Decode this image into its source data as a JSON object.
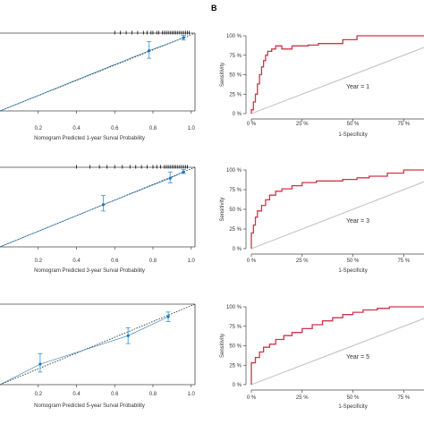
{
  "figure": {
    "panel_label_right": "B",
    "colors": {
      "calibration_points": "#1f78b4",
      "error_bars": "#4a9be0",
      "ideal_line": "#333333",
      "roc_curve": "#d0344a",
      "reference_line": "#c8c8c8",
      "axis": "#444444"
    }
  },
  "chart_data": [
    {
      "type": "scatter",
      "subtype": "calibration",
      "xlabel": "Nomogram Predicted 1-year Surval Probability",
      "xticks": [
        "0.2",
        "0.4",
        "0.6",
        "0.8",
        "1.0"
      ],
      "xlim": [
        0.0,
        1.02
      ],
      "ylim": [
        0.0,
        1.02
      ],
      "points": [
        {
          "x": 0.78,
          "y": 0.79,
          "lo": 0.69,
          "hi": 0.91
        },
        {
          "x": 0.96,
          "y": 0.96,
          "lo": 0.93,
          "hi": 0.99
        }
      ],
      "rug": [
        0.6,
        0.63,
        0.66,
        0.69,
        0.72,
        0.75,
        0.77,
        0.79,
        0.8,
        0.82,
        0.83,
        0.85,
        0.86,
        0.87,
        0.88,
        0.89,
        0.9,
        0.91,
        0.92,
        0.93,
        0.94,
        0.95,
        0.96,
        0.97,
        0.98,
        0.99
      ]
    },
    {
      "type": "scatter",
      "subtype": "calibration",
      "xlabel": "Nomogram Predicted 3-year Surval Probability",
      "xticks": [
        "0.2",
        "0.4",
        "0.6",
        "0.8",
        "1.0"
      ],
      "xlim": [
        0.0,
        1.02
      ],
      "ylim": [
        0.0,
        1.02
      ],
      "points": [
        {
          "x": 0.54,
          "y": 0.54,
          "lo": 0.46,
          "hi": 0.66
        },
        {
          "x": 0.89,
          "y": 0.88,
          "lo": 0.82,
          "hi": 0.96
        },
        {
          "x": 0.96,
          "y": 0.96,
          "lo": 0.94,
          "hi": 0.99
        }
      ],
      "rug": [
        0.4,
        0.47,
        0.52,
        0.56,
        0.6,
        0.64,
        0.68,
        0.71,
        0.74,
        0.77,
        0.8,
        0.82,
        0.84,
        0.86,
        0.87,
        0.88,
        0.89,
        0.9,
        0.91,
        0.92,
        0.93,
        0.94,
        0.95,
        0.96,
        0.97,
        0.98
      ]
    },
    {
      "type": "scatter",
      "subtype": "calibration",
      "xlabel": "Nomogram Predicted 5-year Surval Probability",
      "xticks": [
        "0.2",
        "0.4",
        "0.6",
        "0.8",
        "1.0"
      ],
      "xlim": [
        0.0,
        1.02
      ],
      "ylim": [
        0.0,
        1.02
      ],
      "points": [
        {
          "x": 0.21,
          "y": 0.26,
          "lo": 0.16,
          "hi": 0.39
        },
        {
          "x": 0.67,
          "y": 0.62,
          "lo": 0.52,
          "hi": 0.72
        },
        {
          "x": 0.88,
          "y": 0.86,
          "lo": 0.8,
          "hi": 0.92
        }
      ],
      "rug": []
    },
    {
      "type": "line",
      "subtype": "roc",
      "annotation": "Year = 1",
      "xlabel": "1-Specificity",
      "ylabel": "Sensitivity",
      "xticks": [
        "0 %",
        "25 %",
        "50 %",
        "75 %"
      ],
      "yticks": [
        "0 %",
        "25 %",
        "50 %",
        "75 %",
        "100 %"
      ],
      "xlim": [
        0,
        85
      ],
      "ylim": [
        0,
        100
      ],
      "x": [
        0,
        0,
        1,
        1,
        2,
        2,
        3,
        3,
        4,
        4,
        5,
        5,
        6,
        6,
        7,
        7,
        8,
        8,
        10,
        10,
        12,
        12,
        15,
        15,
        20,
        20,
        25,
        25,
        28,
        28,
        33,
        33,
        45,
        45,
        52,
        52,
        85
      ],
      "y": [
        0,
        5,
        5,
        15,
        15,
        25,
        25,
        38,
        38,
        50,
        50,
        60,
        60,
        68,
        68,
        75,
        75,
        80,
        80,
        83,
        83,
        87,
        87,
        83,
        83,
        87,
        87,
        87,
        87,
        88,
        88,
        90,
        90,
        95,
        95,
        100,
        100
      ],
      "reference": [
        [
          0,
          0
        ],
        [
          85,
          85
        ]
      ]
    },
    {
      "type": "line",
      "subtype": "roc",
      "annotation": "Year = 3",
      "xlabel": "1-Specificity",
      "ylabel": "Sensitivity",
      "xticks": [
        "0 %",
        "25 %",
        "50 %",
        "75 %"
      ],
      "yticks": [
        "0 %",
        "25 %",
        "50 %",
        "75 %",
        "100 %"
      ],
      "xlim": [
        0,
        85
      ],
      "ylim": [
        0,
        100
      ],
      "x": [
        0,
        0,
        1,
        1,
        2,
        2,
        3,
        3,
        5,
        5,
        7,
        7,
        9,
        9,
        12,
        12,
        15,
        15,
        20,
        20,
        25,
        25,
        32,
        32,
        38,
        38,
        45,
        45,
        52,
        52,
        58,
        58,
        67,
        67,
        75,
        75,
        85
      ],
      "y": [
        0,
        20,
        20,
        30,
        30,
        40,
        40,
        48,
        48,
        55,
        55,
        62,
        62,
        68,
        68,
        73,
        73,
        76,
        76,
        80,
        80,
        84,
        84,
        86,
        86,
        86,
        86,
        88,
        88,
        90,
        90,
        92,
        92,
        96,
        96,
        100,
        100
      ],
      "reference": [
        [
          0,
          0
        ],
        [
          85,
          85
        ]
      ]
    },
    {
      "type": "line",
      "subtype": "roc",
      "annotation": "Year = 5",
      "xlabel": "1-Specificity",
      "ylabel": "Sensitivity",
      "xticks": [
        "0 %",
        "25 %",
        "50 %",
        "75 %"
      ],
      "yticks": [
        "0 %",
        "25 %",
        "50 %",
        "75 %",
        "100 %"
      ],
      "xlim": [
        0,
        85
      ],
      "ylim": [
        0,
        100
      ],
      "x": [
        0,
        0,
        2,
        2,
        4,
        4,
        6,
        6,
        9,
        9,
        12,
        12,
        16,
        16,
        20,
        20,
        25,
        25,
        30,
        30,
        35,
        35,
        40,
        40,
        45,
        45,
        50,
        50,
        55,
        55,
        62,
        62,
        68,
        68,
        85
      ],
      "y": [
        0,
        28,
        28,
        35,
        35,
        42,
        42,
        48,
        48,
        52,
        52,
        58,
        58,
        63,
        63,
        67,
        67,
        72,
        72,
        77,
        77,
        82,
        82,
        86,
        86,
        90,
        90,
        93,
        93,
        96,
        96,
        98,
        98,
        100,
        100
      ],
      "reference": [
        [
          0,
          0
        ],
        [
          85,
          85
        ]
      ]
    }
  ]
}
